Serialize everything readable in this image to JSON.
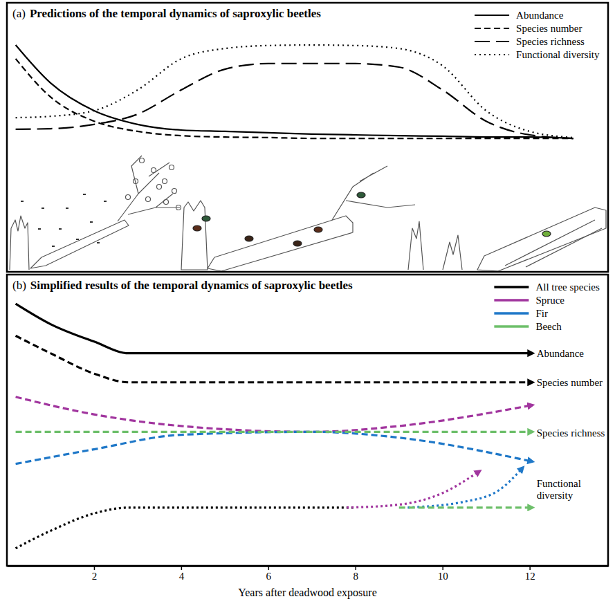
{
  "chart_data": [
    {
      "type": "line",
      "panel": "(a)",
      "title": "Predictions of the temporal dynamics of saproxylic beetles",
      "xlim": [
        0,
        13.8
      ],
      "xticks": [],
      "ylim": [
        0,
        10
      ],
      "yticks": [],
      "tick_labels": false,
      "legend": "top-right",
      "x": [
        0.2,
        1,
        2,
        3,
        4,
        5,
        6,
        7,
        8,
        9,
        10,
        11,
        12,
        13
      ],
      "series": [
        {
          "name": "Abundance",
          "color": "#000000",
          "line_style": "solid",
          "values": [
            8.43,
            7.02,
            5.99,
            5.48,
            5.27,
            5.22,
            5.17,
            5.12,
            5.09,
            5.06,
            5.04,
            5.01,
            5.01,
            4.96
          ]
        },
        {
          "name": "Species number",
          "color": "#000000",
          "line_style": "dashed",
          "values": [
            7.92,
            6.5,
            5.6,
            5.22,
            5.06,
            5.01,
            4.99,
            4.96,
            4.96,
            4.96,
            4.96,
            4.96,
            4.96,
            4.96
          ]
        },
        {
          "name": "Species richness",
          "color": "#000000",
          "line_style": "long-dashed",
          "values": [
            5.3,
            5.32,
            5.48,
            5.86,
            6.76,
            7.53,
            7.74,
            7.74,
            7.74,
            7.61,
            6.76,
            5.6,
            5.09,
            4.96
          ]
        },
        {
          "name": "Functional diversity",
          "color": "#000000",
          "line_style": "dotted",
          "values": [
            5.73,
            5.78,
            5.99,
            6.76,
            7.92,
            8.3,
            8.41,
            8.43,
            8.41,
            8.3,
            7.66,
            5.99,
            5.22,
            4.99
          ]
        }
      ]
    },
    {
      "type": "line",
      "panel": "(b)",
      "title": "Simplified results of the temporal dynamics of saproxylic beetles",
      "xlabel": "Years after deadwood exposure",
      "xlim": [
        0,
        13.8
      ],
      "xticks": [
        2,
        4,
        6,
        8,
        10,
        12
      ],
      "ylim": [
        0,
        10
      ],
      "yticks": [],
      "tick_labels": "x",
      "legend": "top-right",
      "groups": [
        {
          "name": "Abundance",
          "line_style": "solid",
          "series": [
            {
              "name": "All tree species",
              "color": "#000000",
              "marker": "arrow",
              "x": [
                0.2,
                1,
                2,
                2.8,
                12
              ],
              "values": [
                9.0,
                8.3,
                7.7,
                7.3,
                7.3
              ]
            }
          ]
        },
        {
          "name": "Species number",
          "line_style": "dashed",
          "series": [
            {
              "name": "All tree species",
              "color": "#000000",
              "marker": "arrow",
              "x": [
                0.2,
                1,
                2,
                2.8,
                12
              ],
              "values": [
                7.9,
                7.3,
                6.6,
                6.3,
                6.3
              ]
            }
          ]
        },
        {
          "name": "Species richness",
          "line_style": "dashed",
          "series": [
            {
              "name": "Spruce",
              "color": "#a1359e",
              "marker": "arrow",
              "x": [
                0.2,
                2,
                4,
                7,
                9,
                12
              ],
              "values": [
                5.8,
                5.2,
                4.8,
                4.6,
                4.8,
                5.5
              ]
            },
            {
              "name": "Fir",
              "color": "#1f78c8",
              "marker": "arrow",
              "x": [
                0.2,
                2,
                4,
                7,
                9,
                12
              ],
              "values": [
                3.5,
                4.0,
                4.5,
                4.6,
                4.4,
                3.6
              ]
            },
            {
              "name": "Beech",
              "color": "#6dbf6a",
              "marker": "arrow",
              "x": [
                0.2,
                12
              ],
              "values": [
                4.6,
                4.6
              ]
            }
          ]
        },
        {
          "name": "Functional diversity",
          "line_style": "dotted",
          "series": [
            {
              "name": "All tree species",
              "color": "#000000",
              "x": [
                0.2,
                1,
                2,
                2.8,
                8
              ],
              "values": [
                0.6,
                1.2,
                1.8,
                2.0,
                2.0
              ]
            },
            {
              "name": "Spruce",
              "color": "#a1359e",
              "marker": "arrow",
              "x": [
                7.8,
                9,
                10,
                10.8
              ],
              "values": [
                2.0,
                2.1,
                2.5,
                3.2
              ]
            },
            {
              "name": "Fir",
              "color": "#1f78c8",
              "marker": "arrow",
              "x": [
                9.2,
                10.5,
                11.3,
                11.8
              ],
              "values": [
                2.0,
                2.2,
                2.6,
                3.3
              ]
            },
            {
              "name": "Beech",
              "color": "#6dbf6a",
              "marker": "arrow",
              "line_style": "dashed",
              "x": [
                9,
                12
              ],
              "values": [
                2.0,
                2.0
              ]
            }
          ]
        }
      ]
    }
  ]
}
